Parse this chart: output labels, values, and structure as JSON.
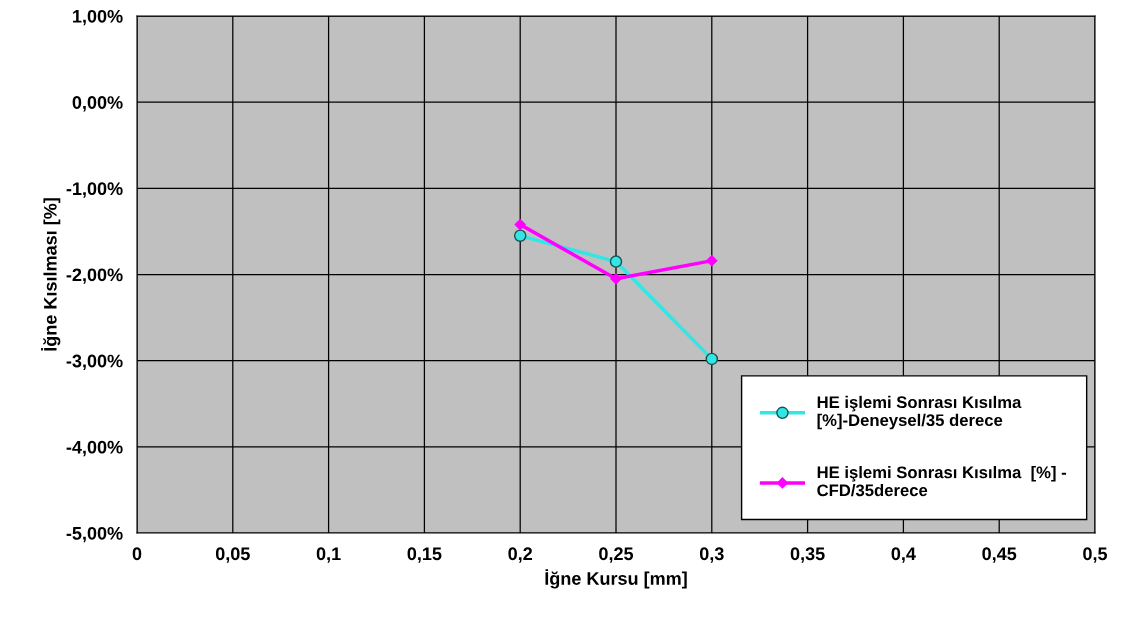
{
  "chart_data": {
    "type": "line",
    "xlabel": "İğne Kursu [mm]",
    "ylabel": "İğne Kısılması [%]",
    "xlim": [
      0,
      0.5
    ],
    "xticks": [
      0,
      {
        "value": 0.05,
        "label": "0,05"
      },
      {
        "value": 0.1,
        "label": "0,1"
      },
      {
        "value": 0.15,
        "label": "0,15"
      },
      {
        "value": 0.2,
        "label": "0,2"
      },
      {
        "value": 0.25,
        "label": "0,25"
      },
      {
        "value": 0.3,
        "label": "0,3"
      },
      {
        "value": 0.35,
        "label": "0,35"
      },
      {
        "value": 0.4,
        "label": "0,4"
      },
      {
        "value": 0.45,
        "label": "0,45"
      },
      {
        "value": 0.5,
        "label": "0,5"
      }
    ],
    "ylim": [
      -5,
      1
    ],
    "yticks": [
      {
        "value": -5,
        "label": "-5,00%"
      },
      {
        "value": -4,
        "label": "-4,00%"
      },
      {
        "value": -3,
        "label": "-3,00%"
      },
      {
        "value": -2,
        "label": "-2,00%"
      },
      {
        "value": -1,
        "label": "-1,00%"
      },
      {
        "value": 0,
        "label": "0,00%"
      },
      {
        "value": 1,
        "label": "1,00%"
      }
    ],
    "grid": true,
    "legend": "bottom right",
    "series": [
      {
        "name": "HE işlemi Sonrası Kısılma\n[%]-Deneysel/35 derece",
        "color": "#33e6e6",
        "marker": "circle",
        "x": [
          0.2,
          0.25,
          0.3
        ],
        "values": [
          -1.55,
          -1.85,
          -2.98
        ]
      },
      {
        "name": "HE işlemi Sonrası Kısılma  [%] -\nCFD/35derece",
        "color": "#ff00ff",
        "marker": "diamond",
        "x": [
          0.2,
          0.25,
          0.3
        ],
        "values": [
          -1.42,
          -2.05,
          -1.84
        ]
      }
    ]
  }
}
